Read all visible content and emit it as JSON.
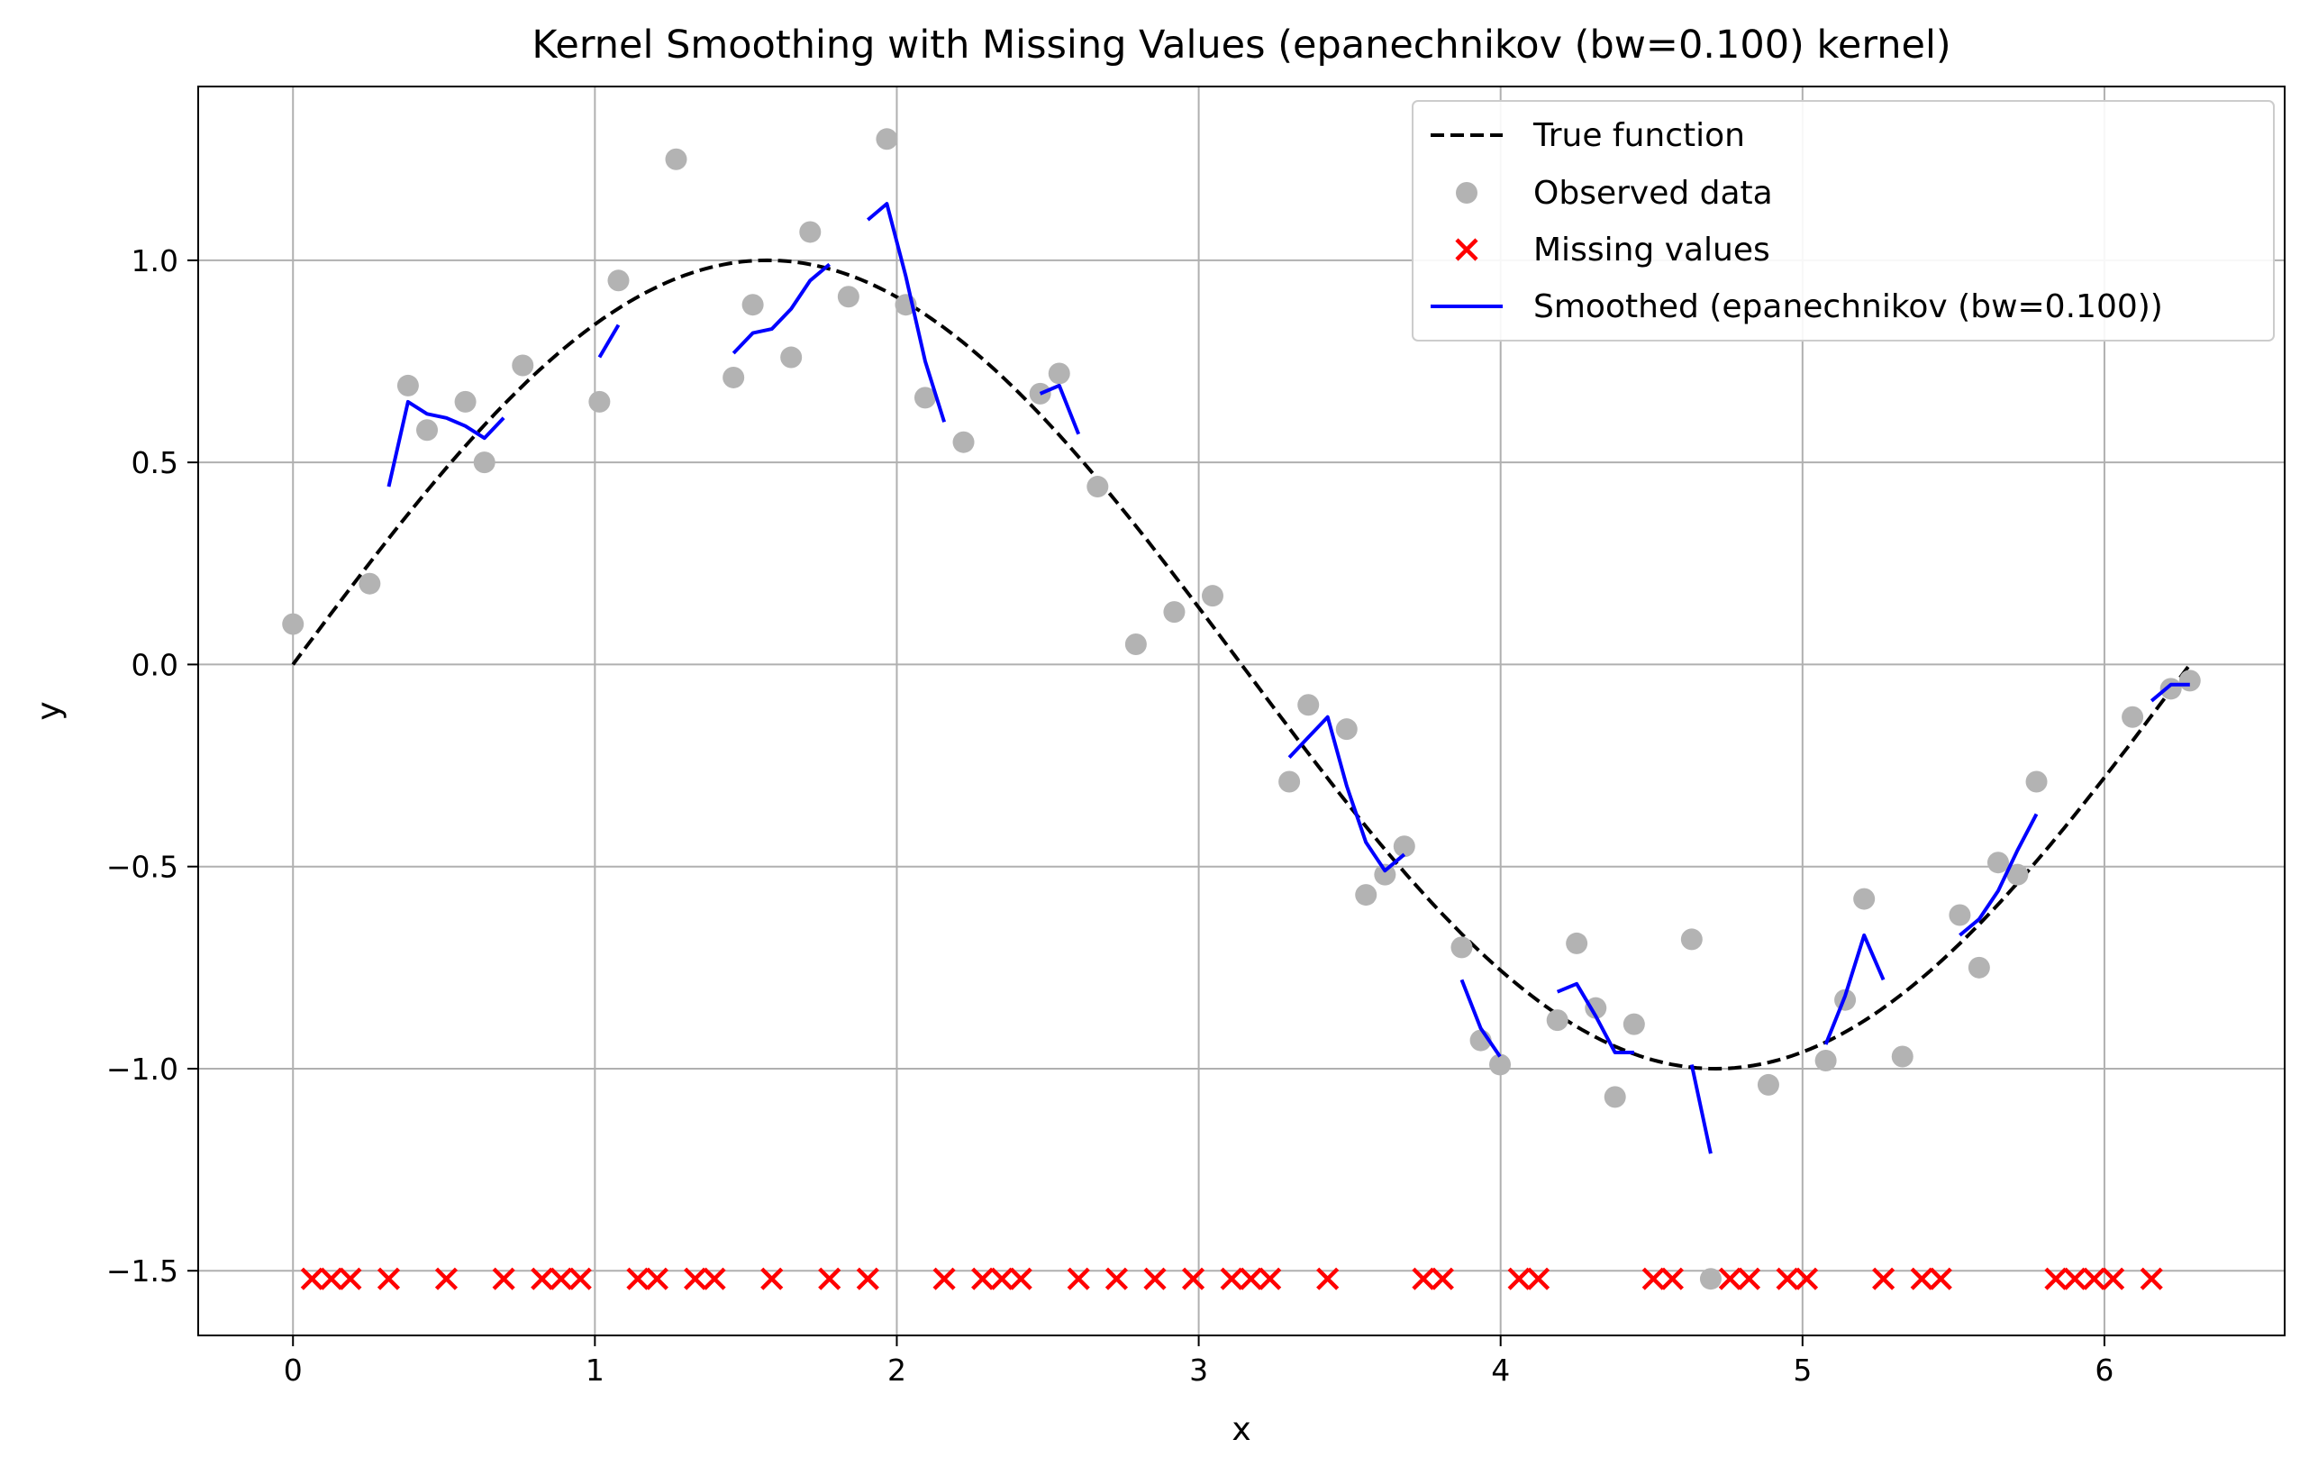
{
  "chart_data": {
    "type": "scatter",
    "title": "Kernel Smoothing with Missing Values (epanechnikov (bw=0.100) kernel)",
    "xlabel": "x",
    "ylabel": "y",
    "xlim": [
      -0.314,
      6.597
    ],
    "ylim": [
      -1.66,
      1.43
    ],
    "x_ticks": [
      0,
      1,
      2,
      3,
      4,
      5,
      6
    ],
    "x_tick_labels": [
      "0",
      "1",
      "2",
      "3",
      "4",
      "5",
      "6"
    ],
    "y_ticks": [
      -1.5,
      -1.0,
      -0.5,
      0.0,
      0.5,
      1.0
    ],
    "y_tick_labels": [
      "−1.5",
      "−1.0",
      "−0.5",
      "0.0",
      "0.5",
      "1.0"
    ],
    "grid": true,
    "legend_position": "top-right",
    "colors": {
      "true_function": "#000000",
      "observed": "#b3b3b3",
      "missing": "#ff0000",
      "smoothed": "#0000ff",
      "grid": "#b0b0b0"
    },
    "series": [
      {
        "name": "True function",
        "kind": "dashed-line",
        "function": "sin(x)",
        "x_range": [
          0,
          6.2832
        ]
      },
      {
        "name": "Observed data",
        "kind": "scatter",
        "points": [
          [
            0.0,
            0.1
          ],
          [
            0.254,
            0.2
          ],
          [
            0.381,
            0.69
          ],
          [
            0.444,
            0.58
          ],
          [
            0.571,
            0.65
          ],
          [
            0.634,
            0.5
          ],
          [
            0.761,
            0.74
          ],
          [
            1.015,
            0.65
          ],
          [
            1.078,
            0.95
          ],
          [
            1.269,
            1.25
          ],
          [
            1.459,
            0.71
          ],
          [
            1.523,
            0.89
          ],
          [
            1.65,
            0.76
          ],
          [
            1.713,
            1.07
          ],
          [
            1.84,
            0.91
          ],
          [
            1.967,
            1.3
          ],
          [
            2.03,
            0.89
          ],
          [
            2.094,
            0.66
          ],
          [
            2.221,
            0.55
          ],
          [
            2.475,
            0.67
          ],
          [
            2.538,
            0.72
          ],
          [
            2.665,
            0.44
          ],
          [
            2.792,
            0.05
          ],
          [
            2.919,
            0.13
          ],
          [
            3.046,
            0.17
          ],
          [
            3.3,
            -0.29
          ],
          [
            3.363,
            -0.1
          ],
          [
            3.49,
            -0.16
          ],
          [
            3.554,
            -0.57
          ],
          [
            3.617,
            -0.52
          ],
          [
            3.681,
            -0.45
          ],
          [
            3.871,
            -0.7
          ],
          [
            3.934,
            -0.93
          ],
          [
            3.998,
            -0.99
          ],
          [
            4.188,
            -0.88
          ],
          [
            4.252,
            -0.69
          ],
          [
            4.315,
            -0.85
          ],
          [
            4.379,
            -1.07
          ],
          [
            4.442,
            -0.89
          ],
          [
            4.633,
            -0.68
          ],
          [
            4.696,
            -1.52
          ],
          [
            4.887,
            -1.04
          ],
          [
            5.077,
            -0.98
          ],
          [
            5.141,
            -0.83
          ],
          [
            5.204,
            -0.58
          ],
          [
            5.331,
            -0.97
          ],
          [
            5.521,
            -0.62
          ],
          [
            5.585,
            -0.75
          ],
          [
            5.648,
            -0.49
          ],
          [
            5.712,
            -0.52
          ],
          [
            5.775,
            -0.29
          ],
          [
            6.093,
            -0.13
          ],
          [
            6.22,
            -0.06
          ],
          [
            6.283,
            -0.04
          ]
        ]
      },
      {
        "name": "Missing values",
        "kind": "x-markers",
        "y": -1.52,
        "x": [
          0.063,
          0.127,
          0.19,
          0.317,
          0.508,
          0.698,
          0.825,
          0.888,
          0.952,
          1.142,
          1.206,
          1.332,
          1.396,
          1.586,
          1.777,
          1.904,
          2.157,
          2.284,
          2.348,
          2.411,
          2.602,
          2.728,
          2.855,
          2.982,
          3.109,
          3.173,
          3.236,
          3.427,
          3.744,
          3.808,
          4.061,
          4.125,
          4.506,
          4.569,
          4.76,
          4.823,
          4.95,
          5.014,
          5.268,
          5.395,
          5.458,
          5.839,
          5.902,
          5.966,
          6.029,
          6.156
        ]
      },
      {
        "name": "Smoothed (epanechnikov (bw=0.100))",
        "kind": "segmented-line",
        "segments": [
          [
            [
              0.317,
              0.44
            ],
            [
              0.381,
              0.65
            ],
            [
              0.444,
              0.62
            ],
            [
              0.508,
              0.61
            ],
            [
              0.571,
              0.59
            ],
            [
              0.634,
              0.56
            ],
            [
              0.698,
              0.61
            ]
          ],
          [
            [
              1.015,
              0.76
            ],
            [
              1.078,
              0.84
            ]
          ],
          [
            [
              1.459,
              0.77
            ],
            [
              1.523,
              0.82
            ],
            [
              1.586,
              0.83
            ],
            [
              1.65,
              0.88
            ],
            [
              1.713,
              0.95
            ],
            [
              1.777,
              0.99
            ]
          ],
          [
            [
              1.904,
              1.1
            ],
            [
              1.967,
              1.14
            ],
            [
              2.03,
              0.96
            ],
            [
              2.094,
              0.75
            ],
            [
              2.157,
              0.6
            ]
          ],
          [
            [
              2.475,
              0.67
            ],
            [
              2.538,
              0.69
            ],
            [
              2.602,
              0.57
            ]
          ],
          [
            [
              3.3,
              -0.23
            ],
            [
              3.363,
              -0.18
            ],
            [
              3.427,
              -0.13
            ],
            [
              3.49,
              -0.3
            ],
            [
              3.554,
              -0.44
            ],
            [
              3.617,
              -0.51
            ],
            [
              3.681,
              -0.47
            ]
          ],
          [
            [
              3.871,
              -0.78
            ],
            [
              3.934,
              -0.9
            ],
            [
              3.998,
              -0.97
            ]
          ],
          [
            [
              4.188,
              -0.81
            ],
            [
              4.252,
              -0.79
            ],
            [
              4.315,
              -0.87
            ],
            [
              4.379,
              -0.96
            ],
            [
              4.442,
              -0.96
            ]
          ],
          [
            [
              4.633,
              -0.99
            ],
            [
              4.696,
              -1.21
            ]
          ],
          [
            [
              5.077,
              -0.94
            ],
            [
              5.141,
              -0.82
            ],
            [
              5.204,
              -0.67
            ],
            [
              5.268,
              -0.78
            ]
          ],
          [
            [
              5.521,
              -0.67
            ],
            [
              5.585,
              -0.63
            ],
            [
              5.648,
              -0.56
            ],
            [
              5.712,
              -0.46
            ],
            [
              5.775,
              -0.37
            ]
          ],
          [
            [
              6.156,
              -0.09
            ],
            [
              6.22,
              -0.05
            ],
            [
              6.283,
              -0.05
            ]
          ]
        ]
      }
    ]
  }
}
